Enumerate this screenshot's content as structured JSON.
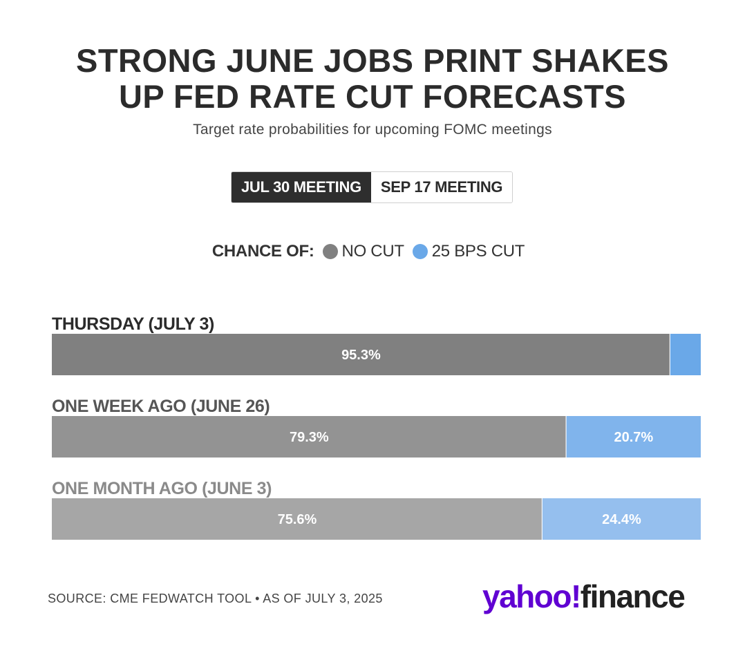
{
  "header": {
    "title_line1": "STRONG JUNE JOBS PRINT SHAKES",
    "title_line2": "UP FED RATE CUT FORECASTS",
    "subtitle": "Target rate probabilities for upcoming FOMC meetings"
  },
  "tabs": [
    {
      "label": "JUL 30 MEETING",
      "active": true
    },
    {
      "label": "SEP 17 MEETING",
      "active": false
    }
  ],
  "legend": {
    "title": "CHANCE OF:",
    "items": [
      {
        "label": "NO CUT",
        "color": "#808080"
      },
      {
        "label": "25 BPS CUT",
        "color": "#6aa8e8"
      }
    ]
  },
  "chart_data": {
    "type": "bar",
    "orientation": "horizontal",
    "stacked": true,
    "categories": [
      "THURSDAY (JULY 3)",
      "ONE WEEK AGO (JUNE 26)",
      "ONE MONTH AGO (JUNE 3)"
    ],
    "series": [
      {
        "name": "NO CUT",
        "values": [
          95.3,
          79.3,
          75.6
        ],
        "labels": [
          "95.3%",
          "79.3%",
          "75.6%"
        ]
      },
      {
        "name": "25 BPS CUT",
        "values": [
          4.7,
          20.7,
          24.4
        ],
        "labels": [
          "",
          "20.7%",
          "24.4%"
        ]
      }
    ],
    "row_colors": [
      {
        "label": "#2b2b2b",
        "no_cut": "#808080",
        "cut": "#6aa8e8"
      },
      {
        "label": "#555555",
        "no_cut": "#939393",
        "cut": "#80b4ec"
      },
      {
        "label": "#8a8a8a",
        "no_cut": "#a6a6a6",
        "cut": "#95bfee"
      }
    ],
    "xlim": [
      0,
      100
    ]
  },
  "footer": {
    "source": "SOURCE: CME FEDWATCH TOOL • AS OF JULY 3, 2025",
    "brand_yahoo": "yahoo!",
    "brand_finance": "finance"
  }
}
